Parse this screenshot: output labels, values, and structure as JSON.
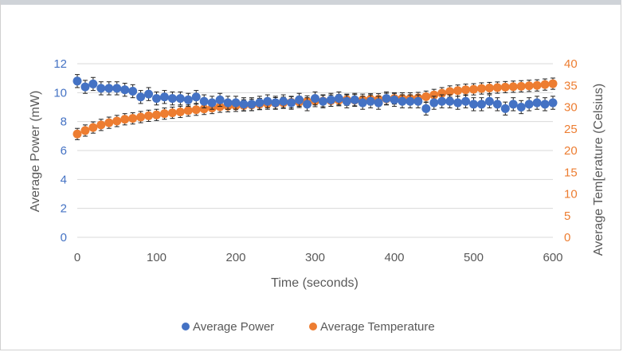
{
  "chart_data": {
    "type": "scatter",
    "xlabel": "Time (seconds)",
    "ylabel_left": "Average Power (mW)",
    "ylabel_right": "Average Tem[erature (Celsius)",
    "xlim": [
      0,
      600
    ],
    "ylim_left": [
      0,
      12
    ],
    "ylim_right": [
      0,
      40
    ],
    "x_ticks": [
      0,
      100,
      200,
      300,
      400,
      500,
      600
    ],
    "y_ticks_left": [
      0,
      2,
      4,
      6,
      8,
      10,
      12
    ],
    "y_ticks_right": [
      0,
      5,
      10,
      15,
      20,
      25,
      30,
      35,
      40
    ],
    "grid": "horizontal",
    "legend_position": "bottom",
    "colors": {
      "power": "#4472c4",
      "temperature": "#ed7d31",
      "left_axis": "#4472c4",
      "right_axis": "#ed7d31"
    },
    "x": [
      0,
      10,
      20,
      30,
      40,
      50,
      60,
      70,
      80,
      90,
      100,
      110,
      120,
      130,
      140,
      150,
      160,
      170,
      180,
      190,
      200,
      210,
      220,
      230,
      240,
      250,
      260,
      270,
      280,
      290,
      300,
      310,
      320,
      330,
      340,
      350,
      360,
      370,
      380,
      390,
      400,
      410,
      420,
      430,
      440,
      450,
      460,
      470,
      480,
      490,
      500,
      510,
      520,
      530,
      540,
      550,
      560,
      570,
      580,
      590,
      600
    ],
    "series": [
      {
        "name": "Average Power",
        "axis": "left",
        "values": [
          10.8,
          10.4,
          10.6,
          10.3,
          10.3,
          10.3,
          10.2,
          10.1,
          9.7,
          9.9,
          9.6,
          9.7,
          9.6,
          9.6,
          9.5,
          9.7,
          9.4,
          9.3,
          9.5,
          9.3,
          9.3,
          9.2,
          9.2,
          9.3,
          9.4,
          9.3,
          9.4,
          9.3,
          9.5,
          9.2,
          9.6,
          9.4,
          9.5,
          9.6,
          9.4,
          9.5,
          9.3,
          9.4,
          9.3,
          9.6,
          9.5,
          9.4,
          9.4,
          9.4,
          8.9,
          9.3,
          9.4,
          9.4,
          9.3,
          9.4,
          9.2,
          9.2,
          9.4,
          9.2,
          8.9,
          9.2,
          9.0,
          9.2,
          9.3,
          9.2,
          9.3
        ],
        "error": 0.45
      },
      {
        "name": "Average Temperature",
        "axis": "right",
        "values": [
          23.8,
          24.6,
          25.3,
          25.9,
          26.4,
          26.8,
          27.2,
          27.4,
          27.7,
          28.0,
          28.2,
          28.5,
          28.7,
          28.9,
          29.2,
          29.4,
          29.6,
          29.8,
          30.1,
          30.2,
          30.3,
          30.4,
          30.5,
          30.7,
          30.8,
          30.9,
          31.0,
          31.1,
          31.2,
          31.3,
          31.4,
          31.4,
          31.5,
          31.6,
          31.7,
          31.6,
          31.7,
          31.8,
          31.8,
          31.9,
          32.0,
          32.0,
          32.0,
          32.1,
          32.4,
          32.8,
          33.2,
          33.6,
          33.8,
          34.0,
          34.1,
          34.3,
          34.4,
          34.5,
          34.6,
          34.7,
          34.8,
          34.9,
          35.0,
          35.2,
          35.4
        ],
        "error": 1.3
      }
    ]
  }
}
